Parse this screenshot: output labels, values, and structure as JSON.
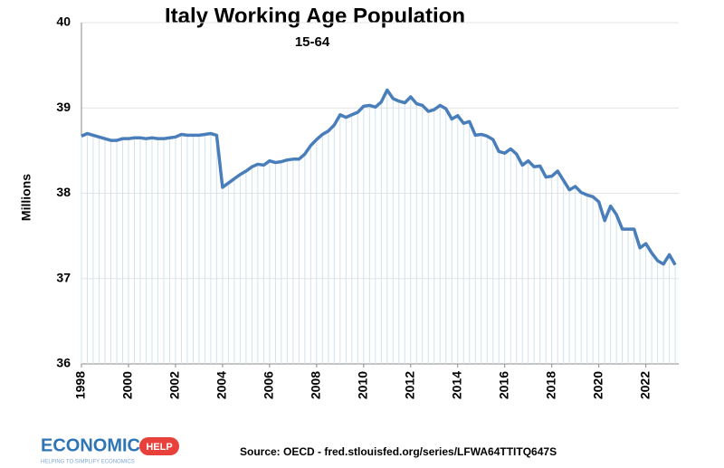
{
  "chart_data": {
    "type": "line",
    "title": "Italy Working Age Population",
    "subtitle": "15-64",
    "y_label": "Millions",
    "source": "Source: OECD - fred.stlouisfed.org/series/LFWA64TTITQ647S",
    "logo": {
      "text": "ECONOMICS",
      "badge": "HELP",
      "tagline": "HELPING TO SIMPLIFY ECONOMICS"
    },
    "x": [
      1998,
      1998.25,
      1998.5,
      1998.75,
      1999,
      1999.25,
      1999.5,
      1999.75,
      2000,
      2000.25,
      2000.5,
      2000.75,
      2001,
      2001.25,
      2001.5,
      2001.75,
      2002,
      2002.25,
      2002.5,
      2002.75,
      2003,
      2003.25,
      2003.5,
      2003.75,
      2004,
      2004.25,
      2004.5,
      2004.75,
      2005,
      2005.25,
      2005.5,
      2005.75,
      2006,
      2006.25,
      2006.5,
      2006.75,
      2007,
      2007.25,
      2007.5,
      2007.75,
      2008,
      2008.25,
      2008.5,
      2008.75,
      2009,
      2009.25,
      2009.5,
      2009.75,
      2010,
      2010.25,
      2010.5,
      2010.75,
      2011,
      2011.25,
      2011.5,
      2011.75,
      2012,
      2012.25,
      2012.5,
      2012.75,
      2013,
      2013.25,
      2013.5,
      2013.75,
      2014,
      2014.25,
      2014.5,
      2014.75,
      2015,
      2015.25,
      2015.5,
      2015.75,
      2016,
      2016.25,
      2016.5,
      2016.75,
      2017,
      2017.25,
      2017.5,
      2017.75,
      2018,
      2018.25,
      2018.5,
      2018.75,
      2019,
      2019.25,
      2019.5,
      2019.75,
      2020,
      2020.25,
      2020.5,
      2020.75,
      2021,
      2021.25,
      2021.5,
      2021.75,
      2022,
      2022.25,
      2022.5,
      2022.75,
      2023,
      2023.25
    ],
    "series": [
      {
        "name": "Working age population",
        "color": "#4a7ebb",
        "values": [
          38.67,
          38.7,
          38.68,
          38.66,
          38.64,
          38.62,
          38.62,
          38.64,
          38.64,
          38.65,
          38.65,
          38.64,
          38.65,
          38.64,
          38.64,
          38.65,
          38.66,
          38.69,
          38.68,
          38.68,
          38.68,
          38.69,
          38.7,
          38.68,
          38.07,
          38.12,
          38.17,
          38.22,
          38.26,
          38.31,
          38.34,
          38.33,
          38.38,
          38.36,
          38.37,
          38.39,
          38.4,
          38.4,
          38.46,
          38.56,
          38.63,
          38.69,
          38.73,
          38.8,
          38.92,
          38.89,
          38.92,
          38.95,
          39.02,
          39.03,
          39.01,
          39.07,
          39.21,
          39.11,
          39.08,
          39.06,
          39.13,
          39.05,
          39.03,
          38.96,
          38.98,
          39.03,
          38.99,
          38.87,
          38.91,
          38.82,
          38.84,
          38.68,
          38.69,
          38.67,
          38.63,
          38.49,
          38.47,
          38.52,
          38.46,
          38.33,
          38.38,
          38.31,
          38.32,
          38.19,
          38.2,
          38.26,
          38.15,
          38.04,
          38.08,
          38.01,
          37.98,
          37.96,
          37.9,
          37.68,
          37.85,
          37.75,
          37.58,
          37.58,
          37.58,
          37.36,
          37.41,
          37.3,
          37.21,
          37.17,
          37.28,
          37.16
        ]
      }
    ],
    "xlim": [
      1998,
      2023.4
    ],
    "xticks": [
      1998,
      2000,
      2002,
      2004,
      2006,
      2008,
      2010,
      2012,
      2014,
      2016,
      2018,
      2020,
      2022
    ],
    "ylim": [
      36,
      40
    ],
    "yticks": [
      36,
      37,
      38,
      39,
      40
    ],
    "grid": true,
    "drop_lines": true
  }
}
